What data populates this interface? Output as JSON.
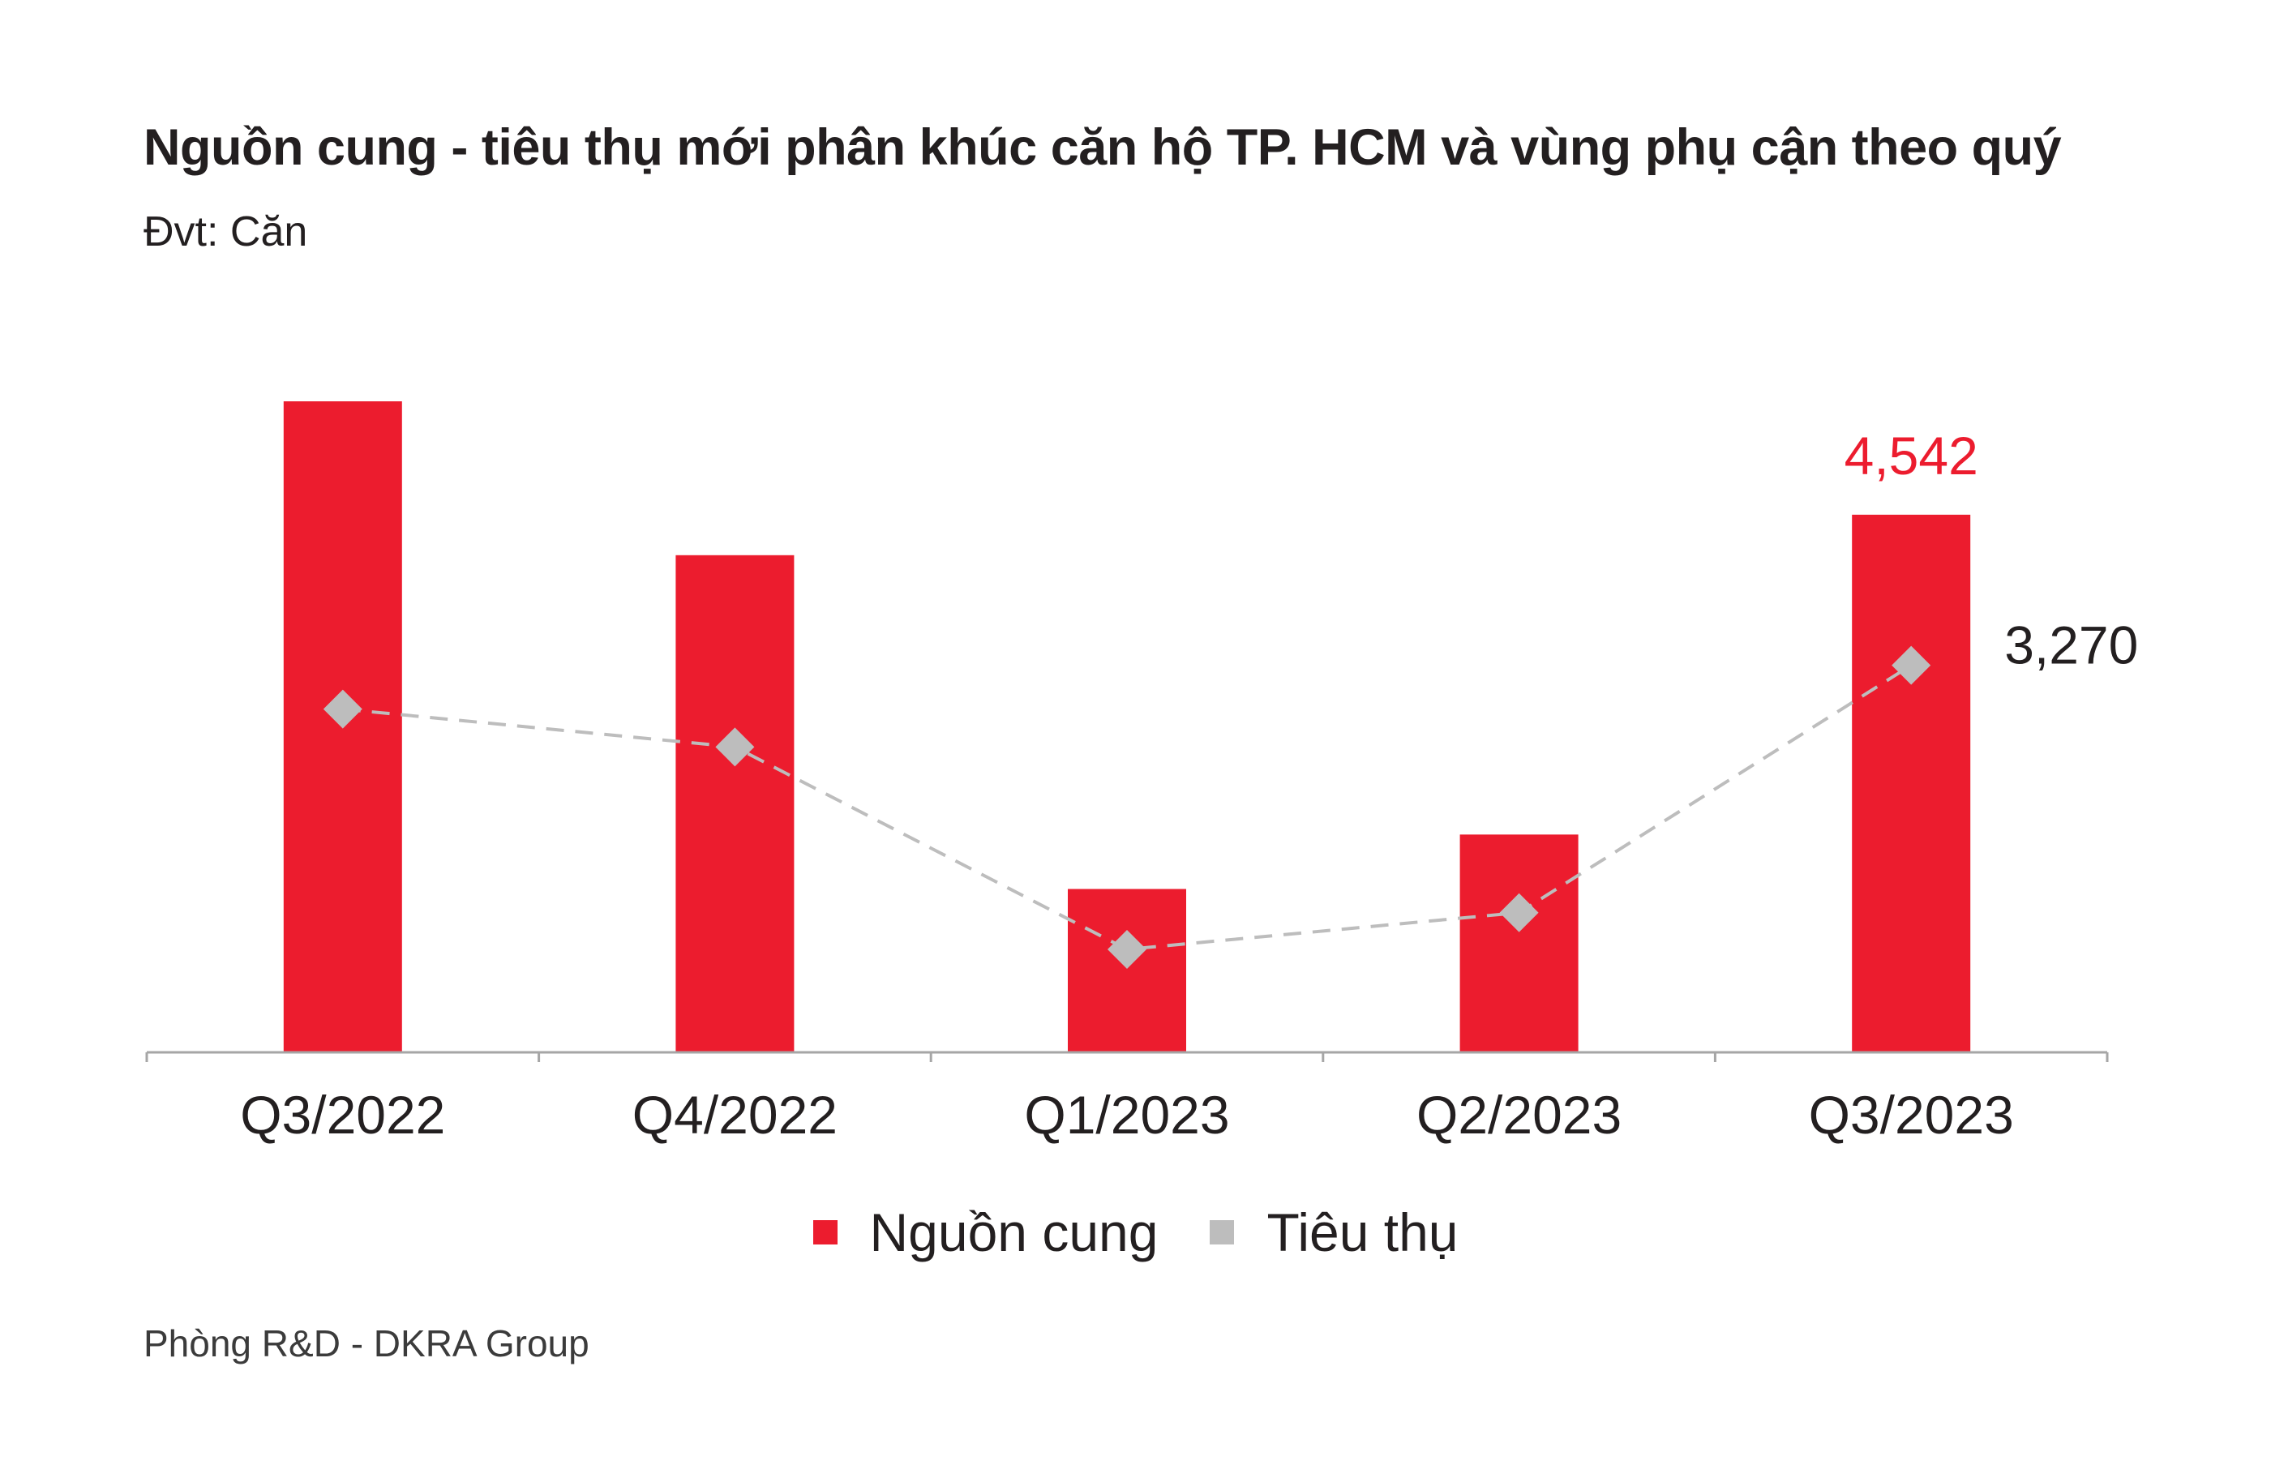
{
  "title": "Nguồn cung - tiêu thụ mới phân khúc căn hộ TP. HCM và vùng phụ cận theo quý",
  "subtitle": "Đvt: Căn",
  "source": "Phòng R&D - DKRA Group",
  "colors": {
    "supply": "#ec1c2e",
    "sales": "#bdbdbd",
    "axis": "#a6a6a6",
    "text": "#231f20"
  },
  "chart_data": {
    "type": "bar",
    "categories": [
      "Q3/2022",
      "Q4/2022",
      "Q1/2023",
      "Q2/2023",
      "Q3/2023"
    ],
    "series": [
      {
        "name": "Nguồn cung",
        "type": "bar",
        "values": [
          5500,
          4200,
          1380,
          1840,
          4542
        ]
      },
      {
        "name": "Tiêu thụ",
        "type": "line",
        "style": "dashed",
        "marker": "diamond",
        "values": [
          2900,
          2580,
          870,
          1180,
          3270
        ]
      }
    ],
    "data_labels": [
      {
        "series": "Nguồn cung",
        "category": "Q3/2023",
        "text": "4,542"
      },
      {
        "series": "Tiêu thụ",
        "category": "Q3/2023",
        "text": "3,270"
      }
    ],
    "ylim": [
      0,
      5500
    ],
    "grid": false,
    "legend_position": "bottom"
  }
}
